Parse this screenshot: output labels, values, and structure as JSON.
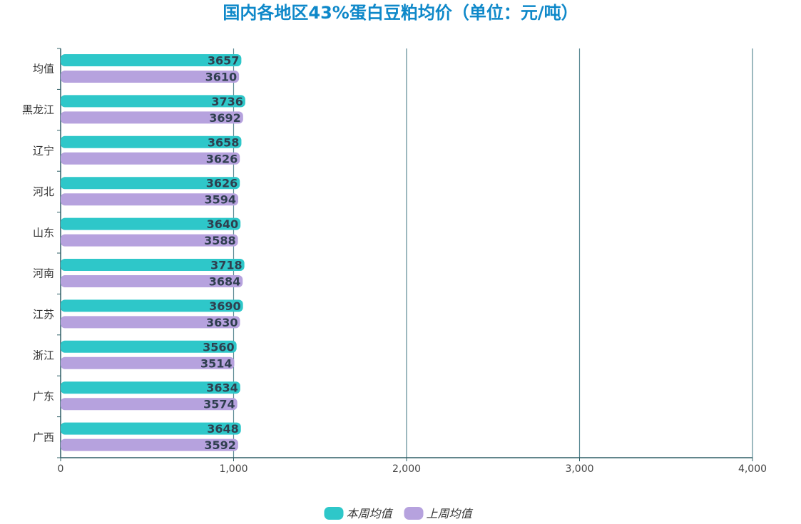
{
  "title": "国内各地区43%蛋白豆粕均价（单位：元/吨）",
  "chart_data": {
    "type": "bar",
    "orientation": "horizontal",
    "title": "国内各地区43%蛋白豆粕均价（单位：元/吨）",
    "categories": [
      "均值",
      "黑龙江",
      "辽宁",
      "河北",
      "山东",
      "河南",
      "江苏",
      "浙江",
      "广东",
      "广西"
    ],
    "series": [
      {
        "name": "本周均值",
        "color": "#2ec7c9",
        "values": [
          3657,
          3736,
          3658,
          3626,
          3640,
          3718,
          3690,
          3560,
          3634,
          3648
        ]
      },
      {
        "name": "上周均值",
        "color": "#b6a2de",
        "values": [
          3610,
          3692,
          3626,
          3594,
          3588,
          3684,
          3630,
          3514,
          3574,
          3592
        ]
      }
    ],
    "x_ticks": [
      "0",
      "1,000",
      "2,000",
      "3,000",
      "4,000"
    ],
    "xlim": [
      0,
      4000
    ],
    "grid": true,
    "legend_position": "bottom-center",
    "xlabel": "",
    "ylabel": ""
  }
}
